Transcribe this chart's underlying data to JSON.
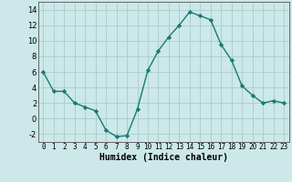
{
  "x": [
    0,
    1,
    2,
    3,
    4,
    5,
    6,
    7,
    8,
    9,
    10,
    11,
    12,
    13,
    14,
    15,
    16,
    17,
    18,
    19,
    20,
    21,
    22,
    23
  ],
  "y": [
    6,
    3.5,
    3.5,
    2,
    1.5,
    1,
    -1.5,
    -2.3,
    -2.2,
    1.2,
    6.2,
    8.7,
    10.5,
    12,
    13.7,
    13.2,
    12.7,
    9.5,
    7.5,
    4.2,
    3,
    2,
    2.3,
    2
  ],
  "line_color": "#1a7a6e",
  "marker": "D",
  "marker_size": 2.2,
  "bg_color": "#cce8e8",
  "grid_color": "#aacccc",
  "xlabel": "Humidex (Indice chaleur)",
  "xlim": [
    -0.5,
    23.5
  ],
  "ylim": [
    -3,
    15
  ],
  "yticks": [
    -2,
    0,
    2,
    4,
    6,
    8,
    10,
    12,
    14
  ],
  "xticks": [
    0,
    1,
    2,
    3,
    4,
    5,
    6,
    7,
    8,
    9,
    10,
    11,
    12,
    13,
    14,
    15,
    16,
    17,
    18,
    19,
    20,
    21,
    22,
    23
  ],
  "xlabel_fontsize": 7,
  "tick_fontsize": 6
}
